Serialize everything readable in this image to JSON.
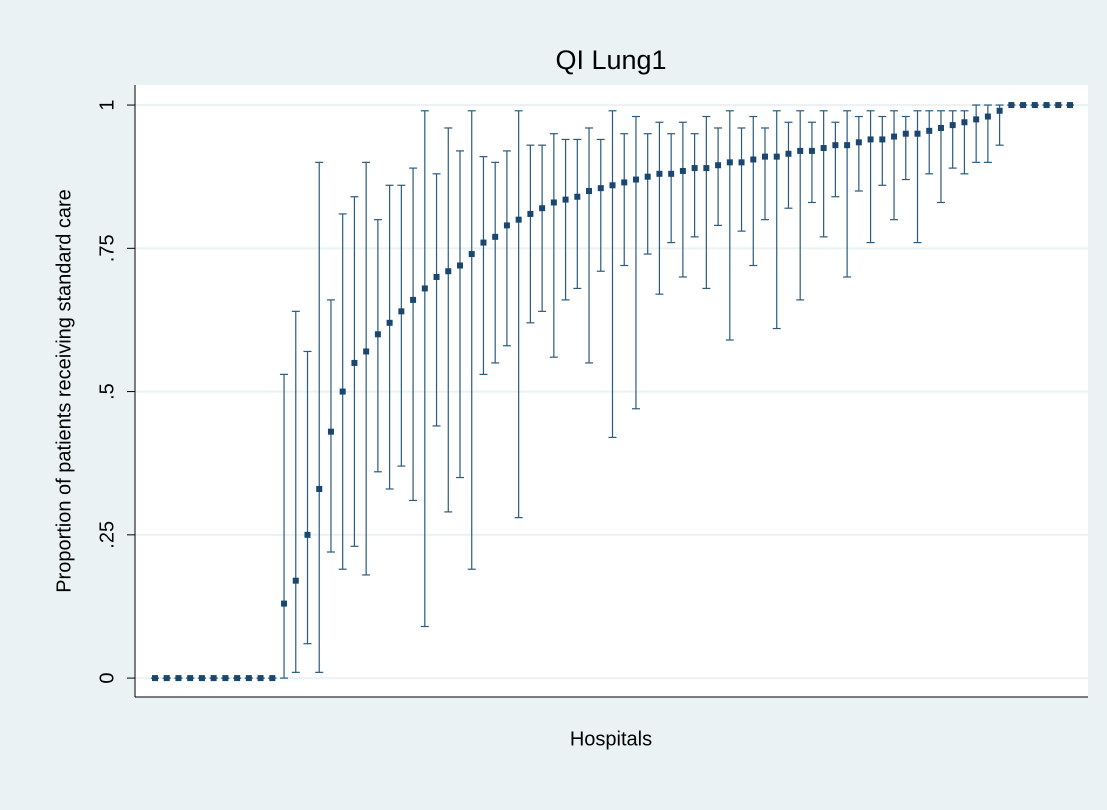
{
  "chart_data": {
    "type": "errorbar",
    "title": "QI Lung1",
    "x_label": "Hospitals",
    "y_label": "Proportion of patients receiving standard care",
    "categories": [
      null,
      null,
      null,
      null,
      null,
      null,
      null,
      null,
      null,
      null,
      null,
      null,
      null,
      null,
      null,
      null,
      null,
      null,
      null,
      null,
      null,
      null,
      null,
      null,
      null,
      null,
      null,
      null,
      null,
      null,
      null,
      null,
      null,
      null,
      null,
      null,
      null,
      null,
      null,
      null,
      null,
      null,
      null,
      null,
      null,
      null,
      null,
      null,
      null,
      null,
      null,
      null,
      null,
      null,
      null,
      null,
      null,
      null,
      null,
      null,
      null,
      null,
      null,
      null,
      null,
      null,
      null,
      null,
      null,
      null,
      null,
      null,
      null,
      null,
      null,
      null,
      null,
      null,
      null
    ],
    "series": [
      {
        "color": "#1a476f",
        "values": [
          0,
          0,
          0,
          0,
          0,
          0,
          0,
          0,
          0,
          0,
          0,
          0.13,
          0.17,
          0.25,
          0.33,
          0.43,
          0.5,
          0.55,
          0.57,
          0.6,
          0.62,
          0.64,
          0.66,
          0.68,
          0.7,
          0.71,
          0.72,
          0.74,
          0.76,
          0.77,
          0.79,
          0.8,
          0.81,
          0.82,
          0.83,
          0.835,
          0.84,
          0.85,
          0.855,
          0.86,
          0.865,
          0.87,
          0.875,
          0.88,
          0.88,
          0.885,
          0.89,
          0.89,
          0.895,
          0.9,
          0.9,
          0.905,
          0.91,
          0.91,
          0.915,
          0.92,
          0.92,
          0.925,
          0.93,
          0.93,
          0.935,
          0.94,
          0.94,
          0.945,
          0.95,
          0.95,
          0.955,
          0.96,
          0.965,
          0.97,
          0.975,
          0.98,
          0.99,
          1,
          1,
          1,
          1,
          1,
          1
        ],
        "lower": [
          0,
          0,
          0,
          0,
          0,
          0,
          0,
          0,
          0,
          0,
          0,
          0,
          0.01,
          0.06,
          0.01,
          0.22,
          0.19,
          0.23,
          0.18,
          0.36,
          0.33,
          0.37,
          0.31,
          0.09,
          0.44,
          0.29,
          0.35,
          0.19,
          0.53,
          0.55,
          0.58,
          0.28,
          0.62,
          0.64,
          0.56,
          0.66,
          0.68,
          0.55,
          0.71,
          0.42,
          0.72,
          0.47,
          0.74,
          0.67,
          0.76,
          0.7,
          0.77,
          0.68,
          0.79,
          0.59,
          0.78,
          0.72,
          0.8,
          0.61,
          0.82,
          0.66,
          0.83,
          0.77,
          0.84,
          0.7,
          0.85,
          0.76,
          0.86,
          0.8,
          0.87,
          0.76,
          0.88,
          0.83,
          0.89,
          0.88,
          0.9,
          0.9,
          0.93,
          1,
          1,
          1,
          1,
          1,
          1
        ],
        "upper": [
          0,
          0,
          0,
          0,
          0,
          0,
          0,
          0,
          0,
          0,
          0,
          0.53,
          0.64,
          0.57,
          0.9,
          0.66,
          0.81,
          0.84,
          0.9,
          0.8,
          0.86,
          0.86,
          0.89,
          0.99,
          0.88,
          0.96,
          0.92,
          0.99,
          0.91,
          0.9,
          0.92,
          0.99,
          0.93,
          0.93,
          0.95,
          0.94,
          0.94,
          0.96,
          0.94,
          0.99,
          0.95,
          0.98,
          0.95,
          0.97,
          0.95,
          0.97,
          0.95,
          0.98,
          0.96,
          0.99,
          0.96,
          0.98,
          0.96,
          0.99,
          0.97,
          0.99,
          0.97,
          0.99,
          0.97,
          0.99,
          0.98,
          0.99,
          0.98,
          0.99,
          0.98,
          0.99,
          0.99,
          0.99,
          0.99,
          0.99,
          1,
          1,
          1,
          1,
          1,
          1,
          1,
          1,
          1
        ]
      }
    ],
    "ylim": [
      -0.033,
      1.035
    ],
    "yticks": [
      0,
      {
        "value": 0.25,
        "label": ".25"
      },
      {
        "value": 0.5,
        "label": ".5"
      },
      {
        "value": 0.75,
        "label": ".75"
      },
      1
    ],
    "grid": true
  }
}
